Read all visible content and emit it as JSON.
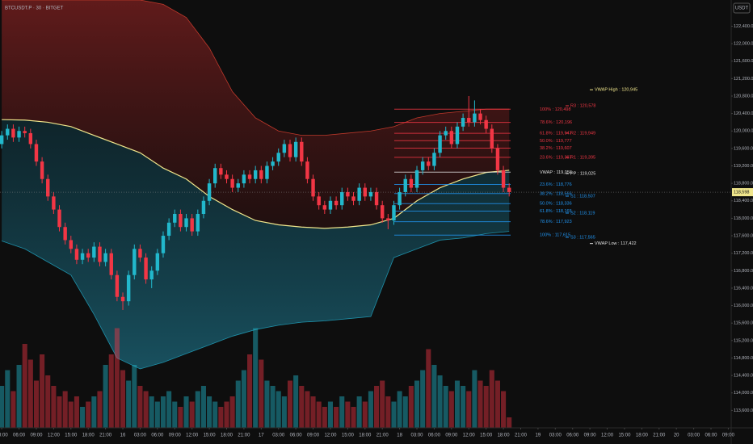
{
  "chart_data": {
    "type": "candlestick",
    "title": "BTCUSDT.P · 30 · BITGET",
    "currency": "USDT",
    "up_color": "#22b8cc",
    "down_color": "#f23645",
    "open": [
      119700,
      119900,
      120050,
      119850,
      120000,
      119950,
      119700,
      119300,
      118900,
      118500,
      118200,
      117800,
      117500,
      117300,
      117050,
      117200,
      117100,
      117350,
      117000,
      117200,
      116700,
      116200,
      116100,
      116700,
      117300,
      117100,
      116600,
      116800,
      117200,
      117600,
      117900,
      118100,
      117800,
      118000,
      117700,
      118100,
      118400,
      118800,
      119150,
      119000,
      118900,
      118700,
      118800,
      119000,
      118900,
      119100,
      118900,
      119200,
      119300,
      119500,
      119700,
      119400,
      119750,
      119300,
      118900,
      118500,
      118300,
      118200,
      118400,
      118300,
      118600,
      118500,
      118400,
      118700,
      118500,
      118600,
      118300,
      118000,
      117950,
      118300,
      118600,
      118900,
      118700,
      119100,
      119300,
      119200,
      119500,
      119900,
      120000,
      119700,
      120100,
      120300,
      120200,
      120400,
      120250,
      120050,
      119600,
      119100,
      118700
    ],
    "high": [
      120000,
      120150,
      120150,
      120100,
      120100,
      120050,
      119800,
      119400,
      119000,
      118600,
      118300,
      117900,
      117600,
      117400,
      117300,
      117300,
      117450,
      117450,
      117300,
      117300,
      116800,
      116300,
      116800,
      117400,
      117400,
      117200,
      116900,
      117300,
      117700,
      118000,
      118200,
      118200,
      118100,
      118100,
      118200,
      118500,
      118900,
      119250,
      119250,
      119100,
      119000,
      118900,
      119100,
      119100,
      119200,
      119200,
      119300,
      119400,
      119600,
      119800,
      119800,
      119850,
      119850,
      119400,
      119000,
      118600,
      118400,
      118500,
      118500,
      118700,
      118700,
      118600,
      118800,
      118800,
      118700,
      118700,
      118400,
      118100,
      118400,
      118700,
      119000,
      119000,
      119200,
      119400,
      119400,
      119600,
      120000,
      120100,
      120100,
      120200,
      120400,
      120800,
      120700,
      120500,
      120350,
      120150,
      119700,
      119200,
      118800
    ],
    "low": [
      119600,
      119800,
      119750,
      119750,
      119850,
      119600,
      119200,
      118800,
      118400,
      118100,
      117700,
      117400,
      117200,
      116950,
      116950,
      117000,
      117000,
      116900,
      116900,
      116600,
      116100,
      115900,
      116000,
      116600,
      117000,
      116500,
      116400,
      116700,
      117100,
      117500,
      117800,
      117700,
      117700,
      117600,
      117600,
      118000,
      118300,
      118700,
      118900,
      118800,
      118600,
      118600,
      118700,
      118800,
      118800,
      118800,
      118800,
      119100,
      119200,
      119400,
      119300,
      119300,
      119200,
      118800,
      118400,
      118200,
      118100,
      118100,
      118200,
      118200,
      118400,
      118300,
      118300,
      118400,
      118400,
      118200,
      117900,
      117750,
      117850,
      118200,
      118500,
      118600,
      118600,
      119000,
      119100,
      119100,
      119400,
      119800,
      119600,
      119600,
      120000,
      120100,
      120100,
      120150,
      119950,
      119500,
      119000,
      118600,
      118500
    ],
    "close": [
      119900,
      120050,
      119850,
      120000,
      119950,
      119700,
      119300,
      118900,
      118500,
      118200,
      117800,
      117500,
      117300,
      117050,
      117200,
      117100,
      117350,
      117000,
      117200,
      116700,
      116200,
      116100,
      116700,
      117300,
      117100,
      116600,
      116800,
      117200,
      117600,
      117900,
      118100,
      117800,
      118000,
      117700,
      118100,
      118400,
      118800,
      119150,
      119000,
      118900,
      118700,
      118800,
      119000,
      118900,
      119100,
      118900,
      119200,
      119300,
      119500,
      119700,
      119400,
      119750,
      119300,
      118900,
      118500,
      118300,
      118200,
      118400,
      118300,
      118600,
      118500,
      118400,
      118700,
      118500,
      118600,
      118300,
      118000,
      117950,
      118300,
      118600,
      118900,
      118700,
      119100,
      119300,
      119200,
      119500,
      119900,
      120000,
      119700,
      120100,
      120300,
      120200,
      120400,
      120250,
      120050,
      119600,
      119100,
      118700,
      118600
    ],
    "volume": [
      40,
      55,
      35,
      60,
      80,
      65,
      45,
      70,
      50,
      40,
      30,
      35,
      25,
      30,
      20,
      25,
      30,
      35,
      60,
      70,
      95,
      55,
      45,
      60,
      40,
      35,
      30,
      25,
      30,
      35,
      25,
      20,
      30,
      25,
      35,
      40,
      30,
      25,
      20,
      25,
      30,
      45,
      55,
      70,
      95,
      65,
      45,
      40,
      35,
      30,
      45,
      50,
      40,
      35,
      30,
      25,
      20,
      25,
      20,
      30,
      25,
      20,
      30,
      25,
      35,
      40,
      45,
      30,
      25,
      35,
      30,
      40,
      45,
      55,
      75,
      60,
      50,
      40,
      35,
      45,
      40,
      35,
      55,
      45,
      40,
      55,
      45,
      35,
      10
    ],
    "volume_ylim": [
      0,
      100
    ],
    "bands": {
      "x": [
        0,
        4,
        8,
        12,
        16,
        20,
        24,
        28,
        32,
        36,
        40,
        44,
        48,
        52,
        56,
        60,
        64,
        68,
        72,
        76,
        80,
        84,
        88
      ],
      "series": [
        {
          "color": "#c0392b",
          "values": [
            123000,
            123000,
            123000,
            123000,
            123000,
            123000,
            123000,
            122900,
            122600,
            121900,
            120900,
            120300,
            120000,
            119900,
            119900,
            119950,
            120000,
            120100,
            120300,
            120400,
            120450,
            120500,
            120500
          ]
        },
        {
          "color": "#f0e68c",
          "values": [
            120260,
            120250,
            120200,
            120100,
            119900,
            119700,
            119500,
            119150,
            118900,
            118500,
            118200,
            117950,
            117850,
            117800,
            117770,
            117800,
            117850,
            118000,
            118400,
            118700,
            118900,
            119050,
            119100
          ]
        },
        {
          "color": "#1e8fa8",
          "values": [
            117480,
            117300,
            117000,
            116700,
            115800,
            114800,
            114550,
            114700,
            114900,
            115100,
            115300,
            115450,
            115550,
            115620,
            115650,
            115700,
            115750,
            117100,
            117300,
            117500,
            117550,
            117650,
            117700
          ]
        }
      ]
    },
    "levels": [
      {
        "label": "100% : 120,498",
        "value": 120498,
        "color": "#f23645"
      },
      {
        "label": "78.6% : 120,196",
        "value": 120196,
        "color": "#f23645"
      },
      {
        "label": "61.8% : 119,947",
        "value": 119947,
        "color": "#f23645"
      },
      {
        "label": "50.0% : 119,777",
        "value": 119777,
        "color": "#f23645"
      },
      {
        "label": "38.2% : 119,607",
        "value": 119607,
        "color": "#f23645"
      },
      {
        "label": "23.6% : 119,397",
        "value": 119397,
        "color": "#f23645"
      },
      {
        "label": "VWAP : 119,056",
        "value": 119056,
        "color": "#e0e0e0"
      },
      {
        "label": "23.6% : 118,776",
        "value": 118776,
        "color": "#2196f3"
      },
      {
        "label": "38.2% : 118,566",
        "value": 118566,
        "color": "#2196f3"
      },
      {
        "label": "50.0% : 118,336",
        "value": 118336,
        "color": "#2196f3"
      },
      {
        "label": "61.8% : 118,165",
        "value": 118165,
        "color": "#2196f3"
      },
      {
        "label": "78.6% : 117,923",
        "value": 117923,
        "color": "#2196f3"
      },
      {
        "label": "100% : 117,615",
        "value": 117615,
        "color": "#2196f3"
      }
    ],
    "pivots": [
      {
        "label": "R3 : 120,578",
        "value": 120578,
        "color": "#f23645"
      },
      {
        "label": "R2 : 119,949",
        "value": 119949,
        "color": "#f23645"
      },
      {
        "label": "R1 : 119,395",
        "value": 119395,
        "color": "#f23645"
      },
      {
        "label": "PP : 119,025",
        "value": 119025,
        "color": "#e0e0e0"
      },
      {
        "label": "S1 : 118,507",
        "value": 118507,
        "color": "#2196f3"
      },
      {
        "label": "S2 : 118,119",
        "value": 118119,
        "color": "#2196f3"
      },
      {
        "label": "S3 : 117,565",
        "value": 117565,
        "color": "#2196f3"
      }
    ],
    "extremes": [
      {
        "label": "VWAP High : 120,945",
        "value": 120945,
        "color": "#f0e68c"
      },
      {
        "label": "VWAP Low : 117,422",
        "value": 117422,
        "color": "#e0e0e0"
      }
    ],
    "last_price": {
      "value": 118598,
      "label": "118,598",
      "color": "#f0e68c"
    },
    "xlim": [
      -0.3,
      126.5
    ],
    "ylim": [
      113200,
      123000
    ],
    "xticks": [
      {
        "value": 0,
        "label": "03:00"
      },
      {
        "value": 3,
        "label": "06:00"
      },
      {
        "value": 6,
        "label": "09:00"
      },
      {
        "value": 9,
        "label": "12:00"
      },
      {
        "value": 12,
        "label": "15:00"
      },
      {
        "value": 15,
        "label": "18:00"
      },
      {
        "value": 18,
        "label": "21:00"
      },
      {
        "value": 21,
        "label": "16"
      },
      {
        "value": 24,
        "label": "03:00"
      },
      {
        "value": 27,
        "label": "06:00"
      },
      {
        "value": 30,
        "label": "09:00"
      },
      {
        "value": 33,
        "label": "12:00"
      },
      {
        "value": 36,
        "label": "15:00"
      },
      {
        "value": 39,
        "label": "18:00"
      },
      {
        "value": 42,
        "label": "21:00"
      },
      {
        "value": 45,
        "label": "17"
      },
      {
        "value": 48,
        "label": "03:00"
      },
      {
        "value": 51,
        "label": "06:00"
      },
      {
        "value": 54,
        "label": "09:00"
      },
      {
        "value": 57,
        "label": "12:00"
      },
      {
        "value": 60,
        "label": "15:00"
      },
      {
        "value": 63,
        "label": "18:00"
      },
      {
        "value": 66,
        "label": "21:00"
      },
      {
        "value": 69,
        "label": "18"
      },
      {
        "value": 72,
        "label": "03:00"
      },
      {
        "value": 75,
        "label": "06:00"
      },
      {
        "value": 78,
        "label": "09:00"
      },
      {
        "value": 81,
        "label": "12:00"
      },
      {
        "value": 84,
        "label": "15:00"
      },
      {
        "value": 87,
        "label": "18:00"
      },
      {
        "value": 90,
        "label": "21:00"
      },
      {
        "value": 93,
        "label": "19"
      },
      {
        "value": 96,
        "label": "03:00"
      },
      {
        "value": 99,
        "label": "06:00"
      },
      {
        "value": 102,
        "label": "09:00"
      },
      {
        "value": 105,
        "label": "12:00"
      },
      {
        "value": 108,
        "label": "15:00"
      },
      {
        "value": 111,
        "label": "18:00"
      },
      {
        "value": 114,
        "label": "21:00"
      },
      {
        "value": 117,
        "label": "20"
      },
      {
        "value": 120,
        "label": "03:00"
      },
      {
        "value": 123,
        "label": "06:00"
      },
      {
        "value": 126,
        "label": "09:00"
      }
    ],
    "yticks": [
      {
        "value": 113600,
        "label": "113,600.0"
      },
      {
        "value": 114000,
        "label": "114,000.0"
      },
      {
        "value": 114400,
        "label": "114,400.0"
      },
      {
        "value": 114800,
        "label": "114,800.0"
      },
      {
        "value": 115200,
        "label": "115,200.0"
      },
      {
        "value": 115600,
        "label": "115,600.0"
      },
      {
        "value": 116000,
        "label": "116,000.0"
      },
      {
        "value": 116400,
        "label": "116,400.0"
      },
      {
        "value": 116800,
        "label": "116,800.0"
      },
      {
        "value": 117200,
        "label": "117,200.0"
      },
      {
        "value": 117600,
        "label": "117,600.0"
      },
      {
        "value": 118000,
        "label": "118,000.0"
      },
      {
        "value": 118400,
        "label": "118,400.0"
      },
      {
        "value": 118800,
        "label": "118,800.0"
      },
      {
        "value": 119200,
        "label": "119,200.0"
      },
      {
        "value": 119600,
        "label": "119,600.0"
      },
      {
        "value": 120000,
        "label": "120,000.0"
      },
      {
        "value": 120400,
        "label": "120,400.0"
      },
      {
        "value": 120800,
        "label": "120,800.0"
      },
      {
        "value": 121200,
        "label": "121,200.0"
      },
      {
        "value": 121600,
        "label": "121,600.0"
      },
      {
        "value": 122000,
        "label": "122,000.0"
      },
      {
        "value": 122400,
        "label": "122,400.0"
      }
    ]
  }
}
